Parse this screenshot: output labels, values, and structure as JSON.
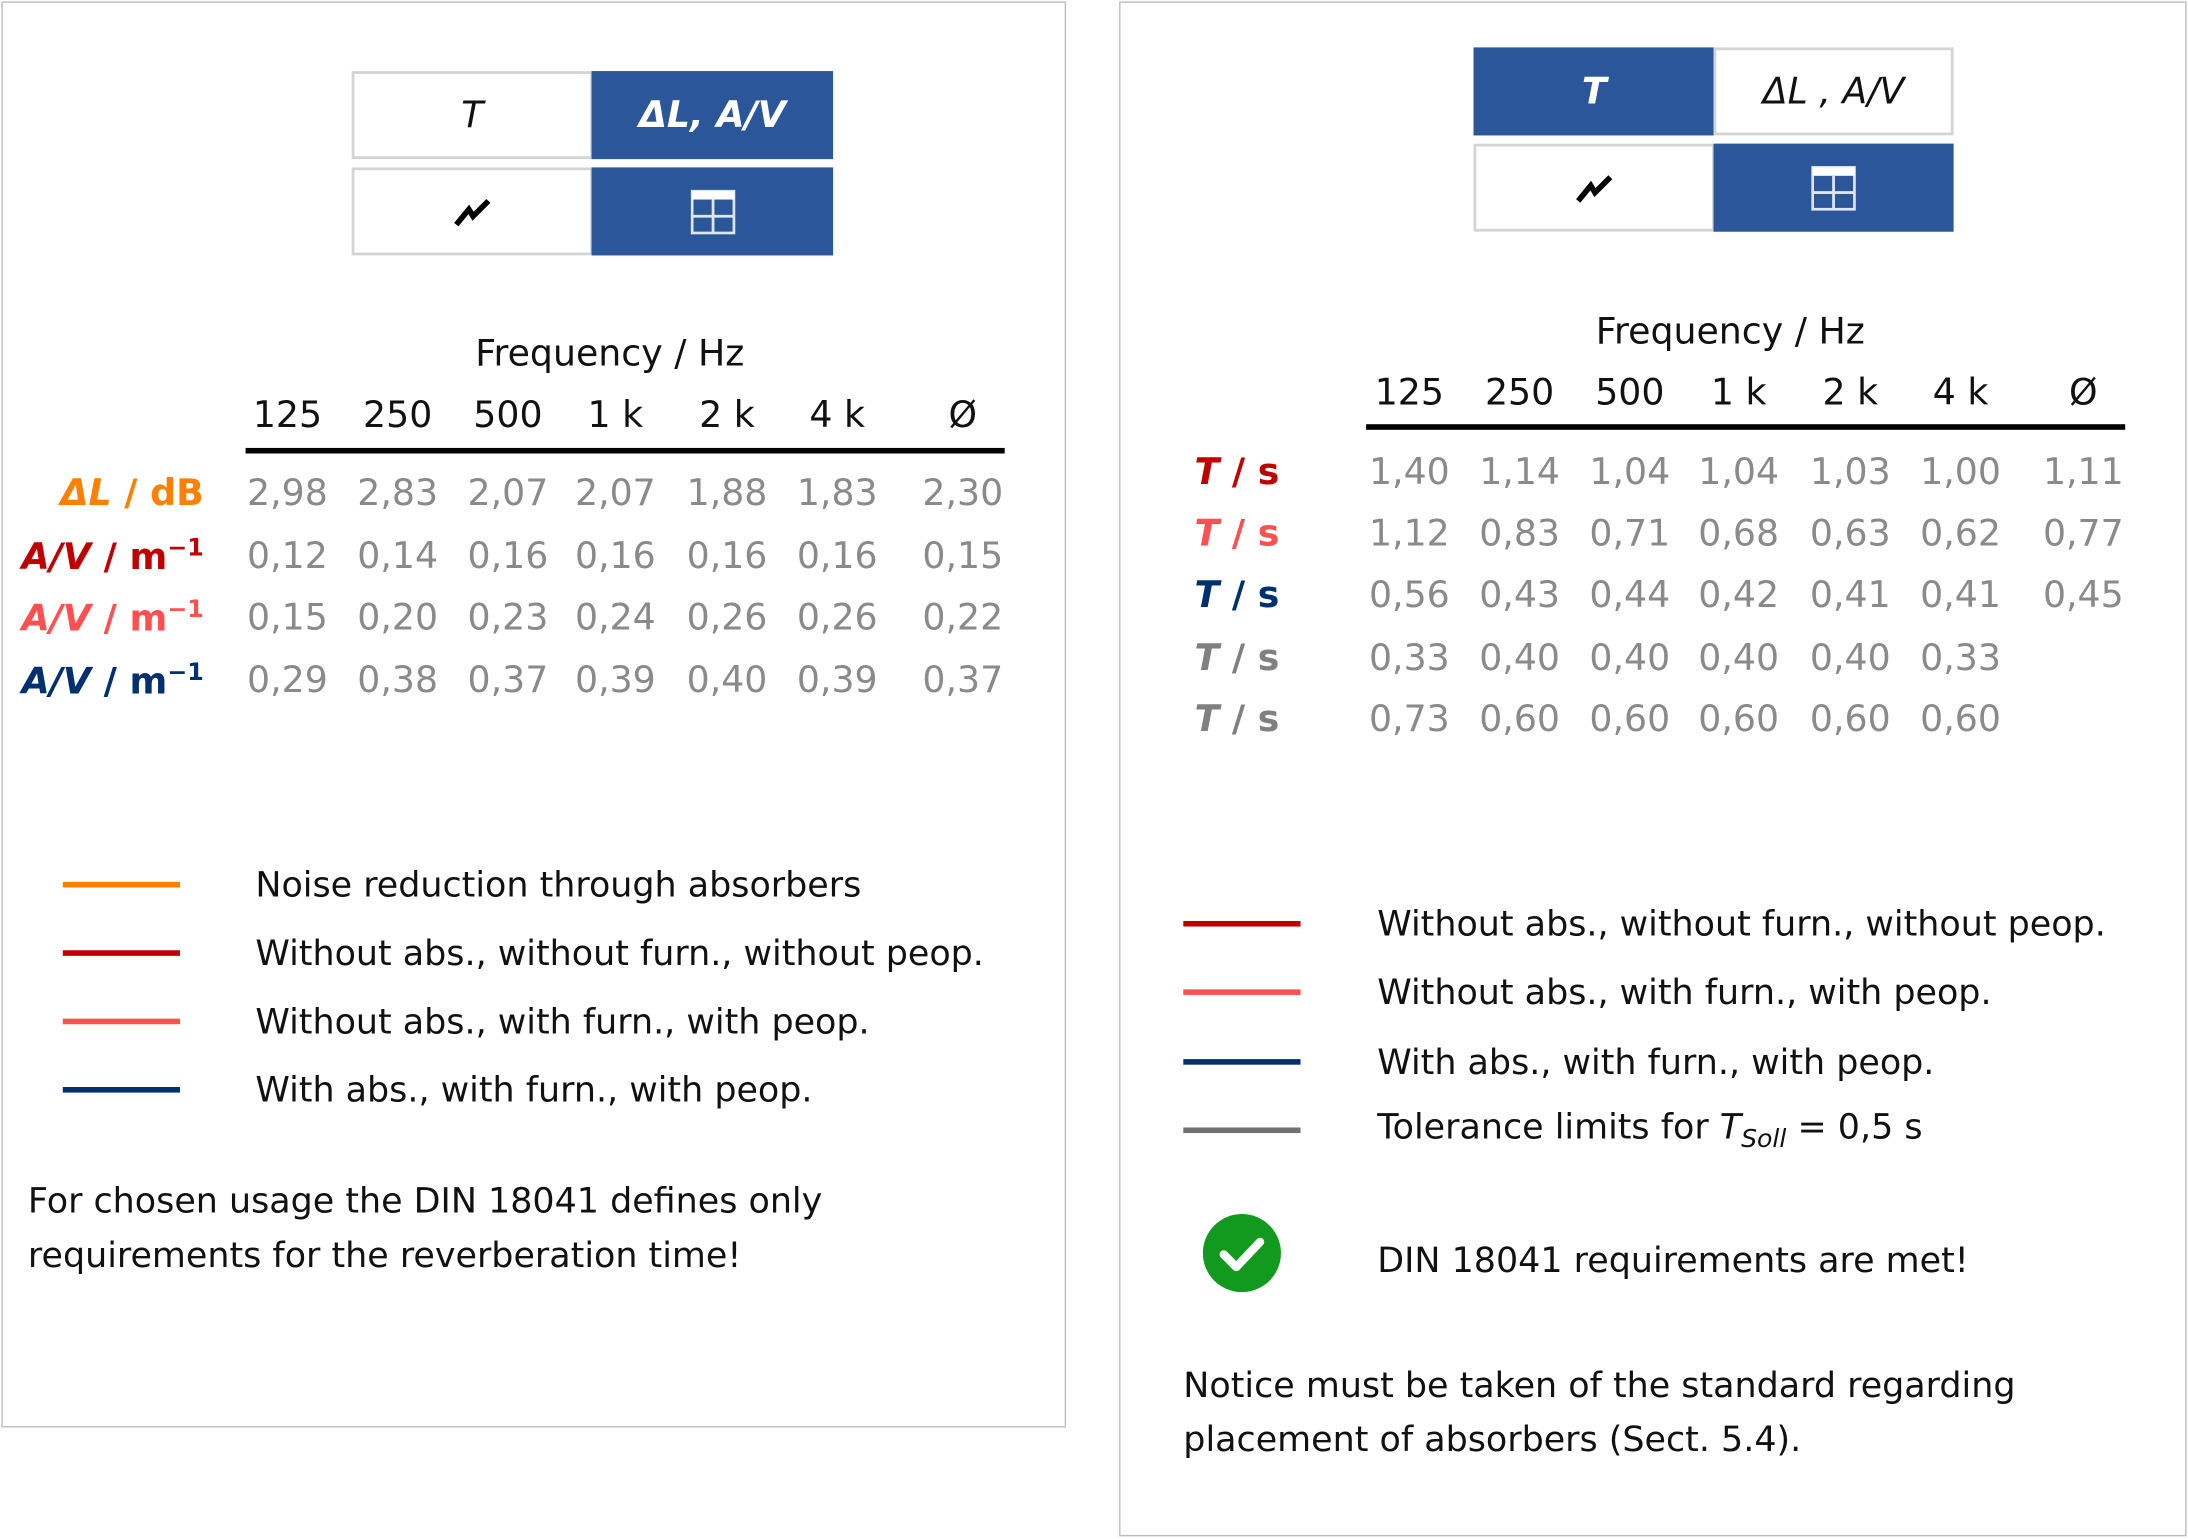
{
  "colors": {
    "accent": "#2b579a",
    "orange": "#ff8000",
    "red": "#c00000",
    "light_red": "#ff5050",
    "navy": "#003070",
    "gray": "#808080",
    "green": "#119a1e"
  },
  "left_panel": {
    "toggle": {
      "t_label": "T",
      "dl_label": "ΔL, A/V",
      "chart_icon": "line-chart-icon",
      "table_icon": "table-icon",
      "active_top": "ΔL, A/V",
      "active_bottom": "table"
    },
    "table": {
      "title": "Frequency / Hz",
      "columns": [
        "125",
        "250",
        "500",
        "1 k",
        "2 k",
        "4 k",
        "Ø"
      ],
      "rows": [
        {
          "label_main": "ΔL",
          "label_unit": " / dB",
          "label_sup": "",
          "color": "#ff8000",
          "values": [
            "2,98",
            "2,83",
            "2,07",
            "2,07",
            "1,88",
            "1,83",
            "2,30"
          ]
        },
        {
          "label_main": "A/V",
          "label_unit": " / m",
          "label_sup": "−1",
          "color": "#c00000",
          "values": [
            "0,12",
            "0,14",
            "0,16",
            "0,16",
            "0,16",
            "0,16",
            "0,15"
          ]
        },
        {
          "label_main": "A/V",
          "label_unit": " / m",
          "label_sup": "−1",
          "color": "#ff5050",
          "values": [
            "0,15",
            "0,20",
            "0,23",
            "0,24",
            "0,26",
            "0,26",
            "0,22"
          ]
        },
        {
          "label_main": "A/V",
          "label_unit": " / m",
          "label_sup": "−1",
          "color": "#003070",
          "values": [
            "0,29",
            "0,38",
            "0,37",
            "0,39",
            "0,40",
            "0,39",
            "0,37"
          ]
        }
      ]
    },
    "legend": [
      {
        "color": "#ff8000",
        "label": "Noise reduction through absorbers"
      },
      {
        "color": "#c00000",
        "label": "Without abs., without furn., without peop."
      },
      {
        "color": "#ff5050",
        "label": "Without abs., with furn., with peop."
      },
      {
        "color": "#003070",
        "label": "With abs., with furn., with peop."
      }
    ],
    "note_line1": "For chosen usage the DIN 18041 defines only",
    "note_line2": "requirements for the reverberation time!"
  },
  "right_panel": {
    "toggle": {
      "t_label": "T",
      "dl_label": "ΔL , A/V",
      "chart_icon": "line-chart-icon",
      "table_icon": "table-icon",
      "active_top": "T",
      "active_bottom": "table"
    },
    "table": {
      "title": "Frequency / Hz",
      "columns": [
        "125",
        "250",
        "500",
        "1 k",
        "2 k",
        "4 k",
        "Ø"
      ],
      "rows": [
        {
          "label_main": "T",
          "label_unit": " / s",
          "color": "#c00000",
          "values": [
            "1,40",
            "1,14",
            "1,04",
            "1,04",
            "1,03",
            "1,00",
            "1,11"
          ]
        },
        {
          "label_main": "T",
          "label_unit": " / s",
          "color": "#ff5050",
          "values": [
            "1,12",
            "0,83",
            "0,71",
            "0,68",
            "0,63",
            "0,62",
            "0,77"
          ]
        },
        {
          "label_main": "T",
          "label_unit": " / s",
          "color": "#003070",
          "values": [
            "0,56",
            "0,43",
            "0,44",
            "0,42",
            "0,41",
            "0,41",
            "0,45"
          ]
        },
        {
          "label_main": "T",
          "label_unit": " / s",
          "color": "#808080",
          "values": [
            "0,33",
            "0,40",
            "0,40",
            "0,40",
            "0,40",
            "0,33",
            ""
          ]
        },
        {
          "label_main": "T",
          "label_unit": " / s",
          "color": "#808080",
          "values": [
            "0,73",
            "0,60",
            "0,60",
            "0,60",
            "0,60",
            "0,60",
            ""
          ]
        }
      ]
    },
    "legend": [
      {
        "color": "#c00000",
        "label": "Without abs., without furn., without peop."
      },
      {
        "color": "#ff5050",
        "label": "Without abs., with furn., with peop."
      },
      {
        "color": "#003070",
        "label": "With abs., with furn., with peop."
      },
      {
        "color": "#707070",
        "label": "Tolerance limits for ",
        "label_var": "T",
        "label_sub": "Soll",
        "label_tail": " = 0,5 s"
      }
    ],
    "status": {
      "icon": "check-circle-icon",
      "text": "DIN 18041 requirements are met!"
    },
    "note_line1": "Notice must be taken of the standard regarding",
    "note_line2": "placement of absorbers (Sect. 5.4)."
  }
}
